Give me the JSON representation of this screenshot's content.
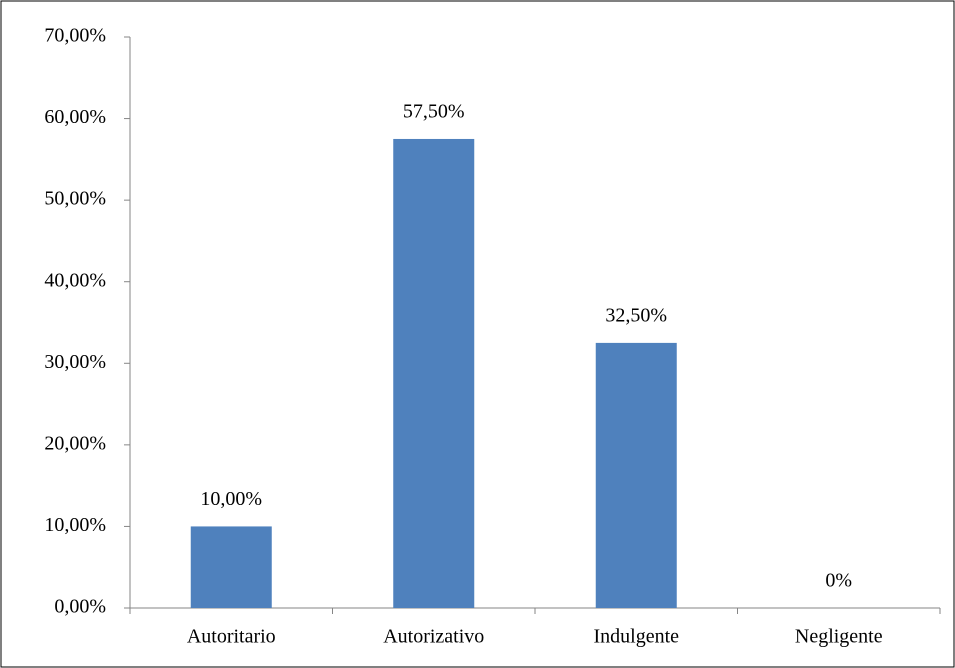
{
  "chart_data": {
    "type": "bar",
    "categories": [
      "Autoritario",
      "Autorizativo",
      "Indulgente",
      "Negligente"
    ],
    "values": [
      10,
      57.5,
      32.5,
      0
    ],
    "value_labels": [
      "10,00%",
      "57,50%",
      "32,50%",
      "0%"
    ],
    "color": "#4f81bd",
    "ylim": [
      0,
      70
    ],
    "yticks": [
      {
        "value": 0,
        "label": "0,00%"
      },
      {
        "value": 10,
        "label": "10,00%"
      },
      {
        "value": 20,
        "label": "20,00%"
      },
      {
        "value": 30,
        "label": "30,00%"
      },
      {
        "value": 40,
        "label": "40,00%"
      },
      {
        "value": 50,
        "label": "50,00%"
      },
      {
        "value": 60,
        "label": "60,00%"
      },
      {
        "value": 70,
        "label": "70,00%"
      }
    ],
    "grid": false
  }
}
